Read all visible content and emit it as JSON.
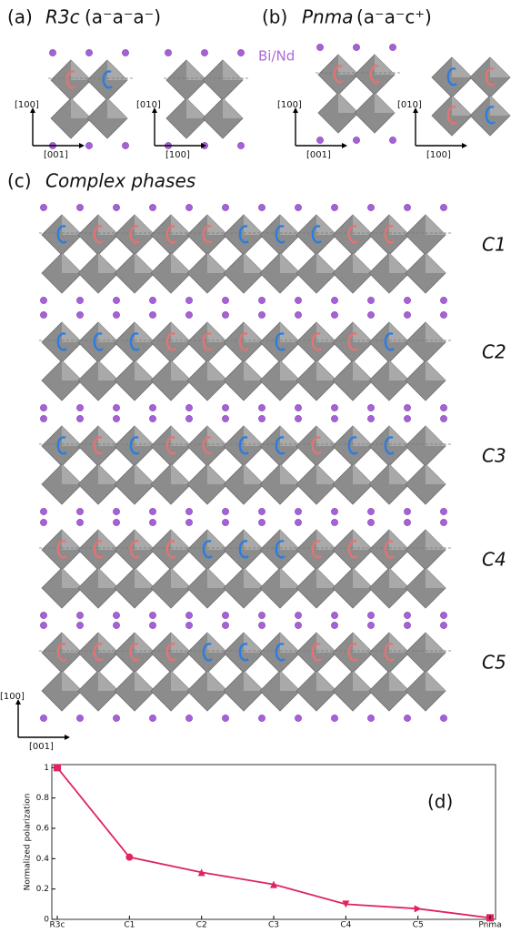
{
  "figure": {
    "a": {
      "label": "(a)",
      "group": "R3c",
      "tilt": "(a⁻a⁻a⁻)",
      "view1": [
        "[100]",
        "[001]"
      ],
      "view2": [
        "[010]",
        "[100]"
      ]
    },
    "b": {
      "label": "(b)",
      "group": "Pnma",
      "tilt": "(a⁻a⁻c⁺)",
      "view1": [
        "[100]",
        "[001]"
      ],
      "view2": [
        "[010]",
        "[100]"
      ]
    },
    "atoms": "Bi/Nd",
    "c": {
      "label": "(c)",
      "title": "Complex phases",
      "phases": [
        "C1",
        "C2",
        "C3",
        "C4",
        "C5"
      ],
      "axes": [
        "[100]",
        "[001]"
      ]
    }
  },
  "chart_data": {
    "type": "line",
    "label": "(d)",
    "y_label": "Normalized polarization",
    "categories": [
      "R3c",
      "C1",
      "C2",
      "C3",
      "C4",
      "C5",
      "Pnma"
    ],
    "values": [
      1,
      0.41,
      0.31,
      0.23,
      0.1,
      0.07,
      0.01
    ],
    "color": "#e0245e",
    "ylim": [
      0,
      1.02
    ],
    "yticks": [
      0,
      0.2,
      0.4,
      0.6,
      0.8,
      1
    ]
  }
}
